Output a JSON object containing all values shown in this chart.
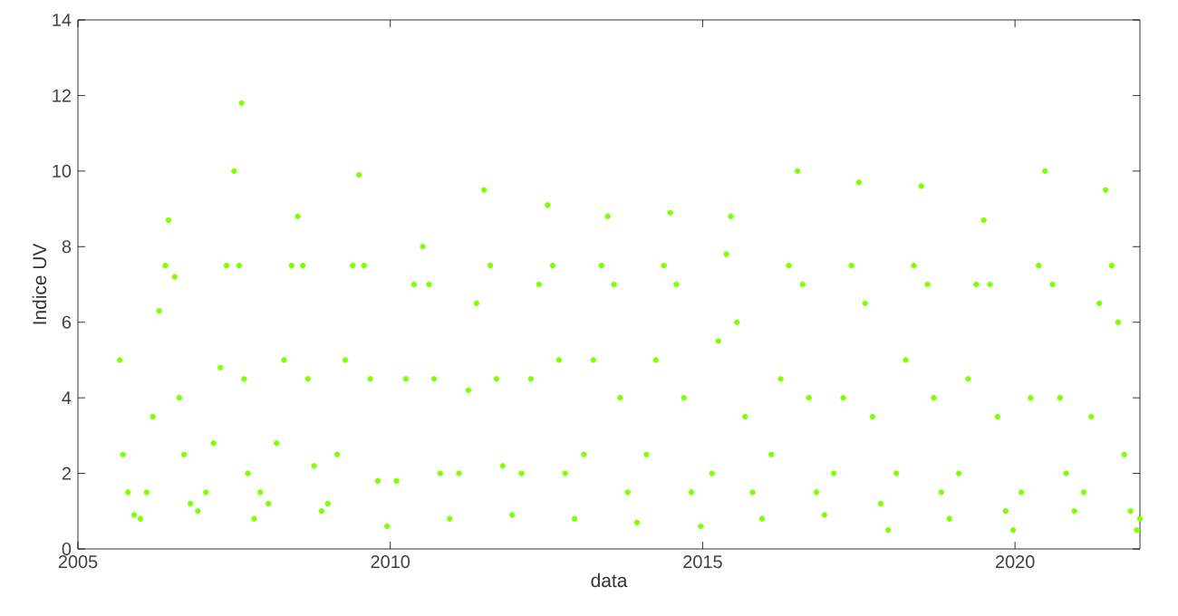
{
  "chart_data": {
    "type": "scatter",
    "xlabel": "data",
    "ylabel": "Indice UV",
    "color": "#7fff00",
    "grid": false,
    "xlim": [
      2005,
      2022
    ],
    "xticks": [
      2005,
      2010,
      2015,
      2020
    ],
    "ylim": [
      0,
      14
    ],
    "yticks": [
      0,
      2,
      4,
      6,
      8,
      10,
      12,
      14
    ],
    "x": [
      2005.67,
      2005.72,
      2005.8,
      2005.9,
      2006.0,
      2006.1,
      2006.2,
      2006.3,
      2006.4,
      2006.45,
      2006.55,
      2006.62,
      2006.7,
      2006.8,
      2006.92,
      2007.05,
      2007.17,
      2007.28,
      2007.38,
      2007.5,
      2007.62,
      2007.58,
      2007.66,
      2007.72,
      2007.82,
      2007.92,
      2008.05,
      2008.18,
      2008.3,
      2008.42,
      2008.52,
      2008.6,
      2008.68,
      2008.78,
      2008.9,
      2009.0,
      2009.15,
      2009.28,
      2009.4,
      2009.5,
      2009.58,
      2009.68,
      2009.8,
      2009.95,
      2010.1,
      2010.25,
      2010.38,
      2010.52,
      2010.62,
      2010.7,
      2010.8,
      2010.95,
      2011.1,
      2011.25,
      2011.38,
      2011.5,
      2011.6,
      2011.7,
      2011.8,
      2011.95,
      2012.1,
      2012.25,
      2012.38,
      2012.52,
      2012.6,
      2012.7,
      2012.8,
      2012.95,
      2013.1,
      2013.25,
      2013.38,
      2013.48,
      2013.58,
      2013.68,
      2013.8,
      2013.95,
      2014.1,
      2014.25,
      2014.38,
      2014.48,
      2014.58,
      2014.7,
      2014.82,
      2014.97,
      2015.15,
      2015.25,
      2015.38,
      2015.45,
      2015.55,
      2015.68,
      2015.8,
      2015.95,
      2016.1,
      2016.25,
      2016.38,
      2016.52,
      2016.6,
      2016.7,
      2016.82,
      2016.95,
      2017.1,
      2017.25,
      2017.38,
      2017.5,
      2017.6,
      2017.72,
      2017.85,
      2017.97,
      2018.1,
      2018.25,
      2018.38,
      2018.5,
      2018.6,
      2018.7,
      2018.82,
      2018.95,
      2019.1,
      2019.25,
      2019.38,
      2019.5,
      2019.6,
      2019.72,
      2019.85,
      2019.97,
      2020.1,
      2020.25,
      2020.38,
      2020.48,
      2020.6,
      2020.72,
      2020.82,
      2020.95,
      2021.1,
      2021.22,
      2021.35,
      2021.45,
      2021.55,
      2021.65,
      2021.75,
      2021.85,
      2021.95,
      2022.0
    ],
    "values": [
      5.0,
      2.5,
      1.5,
      0.9,
      0.8,
      1.5,
      3.5,
      6.3,
      7.5,
      8.7,
      7.2,
      4.0,
      2.5,
      1.2,
      1.0,
      1.5,
      2.8,
      4.8,
      7.5,
      10.0,
      11.8,
      7.5,
      4.5,
      2.0,
      0.8,
      1.5,
      1.2,
      2.8,
      5.0,
      7.5,
      8.8,
      7.5,
      4.5,
      2.2,
      1.0,
      1.2,
      2.5,
      5.0,
      7.5,
      9.9,
      7.5,
      4.5,
      1.8,
      0.6,
      1.8,
      4.5,
      7.0,
      8.0,
      7.0,
      4.5,
      2.0,
      0.8,
      2.0,
      4.2,
      6.5,
      9.5,
      7.5,
      4.5,
      2.2,
      0.9,
      2.0,
      4.5,
      7.0,
      9.1,
      7.5,
      5.0,
      2.0,
      0.8,
      2.5,
      5.0,
      7.5,
      8.8,
      7.0,
      4.0,
      1.5,
      0.7,
      2.5,
      5.0,
      7.5,
      8.9,
      7.0,
      4.0,
      1.5,
      0.6,
      2.0,
      5.5,
      7.8,
      8.8,
      6.0,
      3.5,
      1.5,
      0.8,
      2.5,
      4.5,
      7.5,
      10.0,
      7.0,
      4.0,
      1.5,
      0.9,
      2.0,
      4.0,
      7.5,
      9.7,
      6.5,
      3.5,
      1.2,
      0.5,
      2.0,
      5.0,
      7.5,
      9.6,
      7.0,
      4.0,
      1.5,
      0.8,
      2.0,
      4.5,
      7.0,
      8.7,
      7.0,
      3.5,
      1.0,
      0.5,
      1.5,
      4.0,
      7.5,
      10.0,
      7.0,
      4.0,
      2.0,
      1.0,
      1.5,
      3.5,
      6.5,
      9.5,
      7.5,
      6.0,
      2.5,
      1.0,
      0.5,
      0.8
    ]
  }
}
